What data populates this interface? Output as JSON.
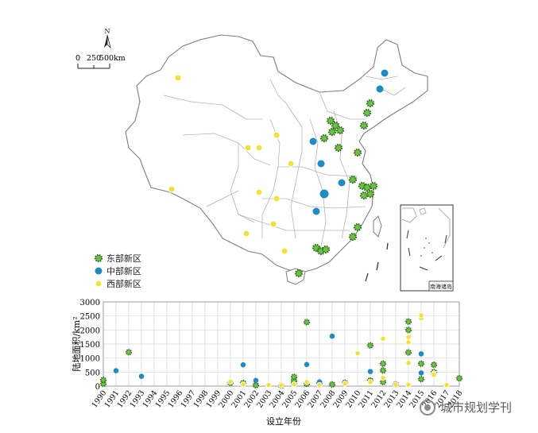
{
  "map": {
    "north_label": "N",
    "scale_ticks": [
      "0",
      "250",
      "500"
    ],
    "scale_unit": "km",
    "inset_label": "南海诸岛",
    "legend": [
      {
        "key": "east",
        "label": "东部新区",
        "color": "#6cc04a",
        "dot": "#2f6e16"
      },
      {
        "key": "central",
        "label": "中部新区",
        "color": "#1f8bc6",
        "dot": "#1f8bc6"
      },
      {
        "key": "west",
        "label": "西部新区",
        "color": "#f5e02b",
        "dot": "#f5e02b"
      }
    ]
  },
  "colors": {
    "east": "#6cc04a",
    "central": "#1f8bc6",
    "west": "#f5e02b",
    "grid": "#d6d6d6",
    "border": "#9a9a9a"
  },
  "chart_data": {
    "type": "scatter",
    "xlabel": "设立年份",
    "ylabel": "陆地面积/km²",
    "ylim": [
      0,
      3000
    ],
    "yticks": [
      0,
      500,
      1000,
      1500,
      2000,
      2500,
      3000
    ],
    "categories": [
      "1990",
      "1991",
      "1992",
      "1993",
      "1994",
      "1995",
      "1996",
      "1997",
      "1998",
      "1999",
      "2000",
      "2001",
      "2002",
      "2003",
      "2004",
      "2005",
      "2006",
      "2007",
      "2008",
      "2009",
      "2010",
      "2011",
      "2012",
      "2013",
      "2014",
      "2015",
      "2016",
      "2017",
      "2018"
    ],
    "series": [
      {
        "name": "东部新区",
        "key": "east",
        "points": [
          [
            "1990",
            80
          ],
          [
            "1990",
            220
          ],
          [
            "1992",
            1210
          ],
          [
            "2000",
            120
          ],
          [
            "2001",
            110
          ],
          [
            "2002",
            30
          ],
          [
            "2004",
            20
          ],
          [
            "2005",
            100
          ],
          [
            "2005",
            200
          ],
          [
            "2005",
            330
          ],
          [
            "2006",
            2280
          ],
          [
            "2006",
            80
          ],
          [
            "2007",
            90
          ],
          [
            "2008",
            60
          ],
          [
            "2009",
            120
          ],
          [
            "2011",
            1450
          ],
          [
            "2011",
            200
          ],
          [
            "2012",
            560
          ],
          [
            "2012",
            800
          ],
          [
            "2012",
            150
          ],
          [
            "2013",
            60
          ],
          [
            "2014",
            2300
          ],
          [
            "2014",
            2000
          ],
          [
            "2014",
            1200
          ],
          [
            "2015",
            800
          ],
          [
            "2015",
            250
          ],
          [
            "2016",
            760
          ],
          [
            "2016",
            500
          ],
          [
            "2018",
            280
          ]
        ]
      },
      {
        "name": "中部新区",
        "key": "central",
        "points": [
          [
            "1991",
            550
          ],
          [
            "1993",
            350
          ],
          [
            "2001",
            760
          ],
          [
            "2002",
            200
          ],
          [
            "2006",
            770
          ],
          [
            "2007",
            150
          ],
          [
            "2008",
            1780
          ],
          [
            "2011",
            520
          ],
          [
            "2015",
            1150
          ],
          [
            "2015",
            470
          ]
        ]
      },
      {
        "name": "西部新区",
        "key": "west",
        "points": [
          [
            "2000",
            160
          ],
          [
            "2001",
            60
          ],
          [
            "2003",
            40
          ],
          [
            "2004",
            30
          ],
          [
            "2005",
            60
          ],
          [
            "2006",
            150
          ],
          [
            "2007",
            40
          ],
          [
            "2009",
            90
          ],
          [
            "2010",
            1170
          ],
          [
            "2011",
            150
          ],
          [
            "2012",
            1690
          ],
          [
            "2012",
            300
          ],
          [
            "2013",
            50
          ],
          [
            "2014",
            1750
          ],
          [
            "2014",
            1560
          ],
          [
            "2014",
            830
          ],
          [
            "2014",
            50
          ],
          [
            "2015",
            2420
          ],
          [
            "2015",
            2520
          ],
          [
            "2016",
            450
          ],
          [
            "2016",
            400
          ],
          [
            "2017",
            40
          ]
        ]
      }
    ]
  },
  "watermark": {
    "text": "城市规划学刊",
    "icon": "wechat-icon"
  }
}
